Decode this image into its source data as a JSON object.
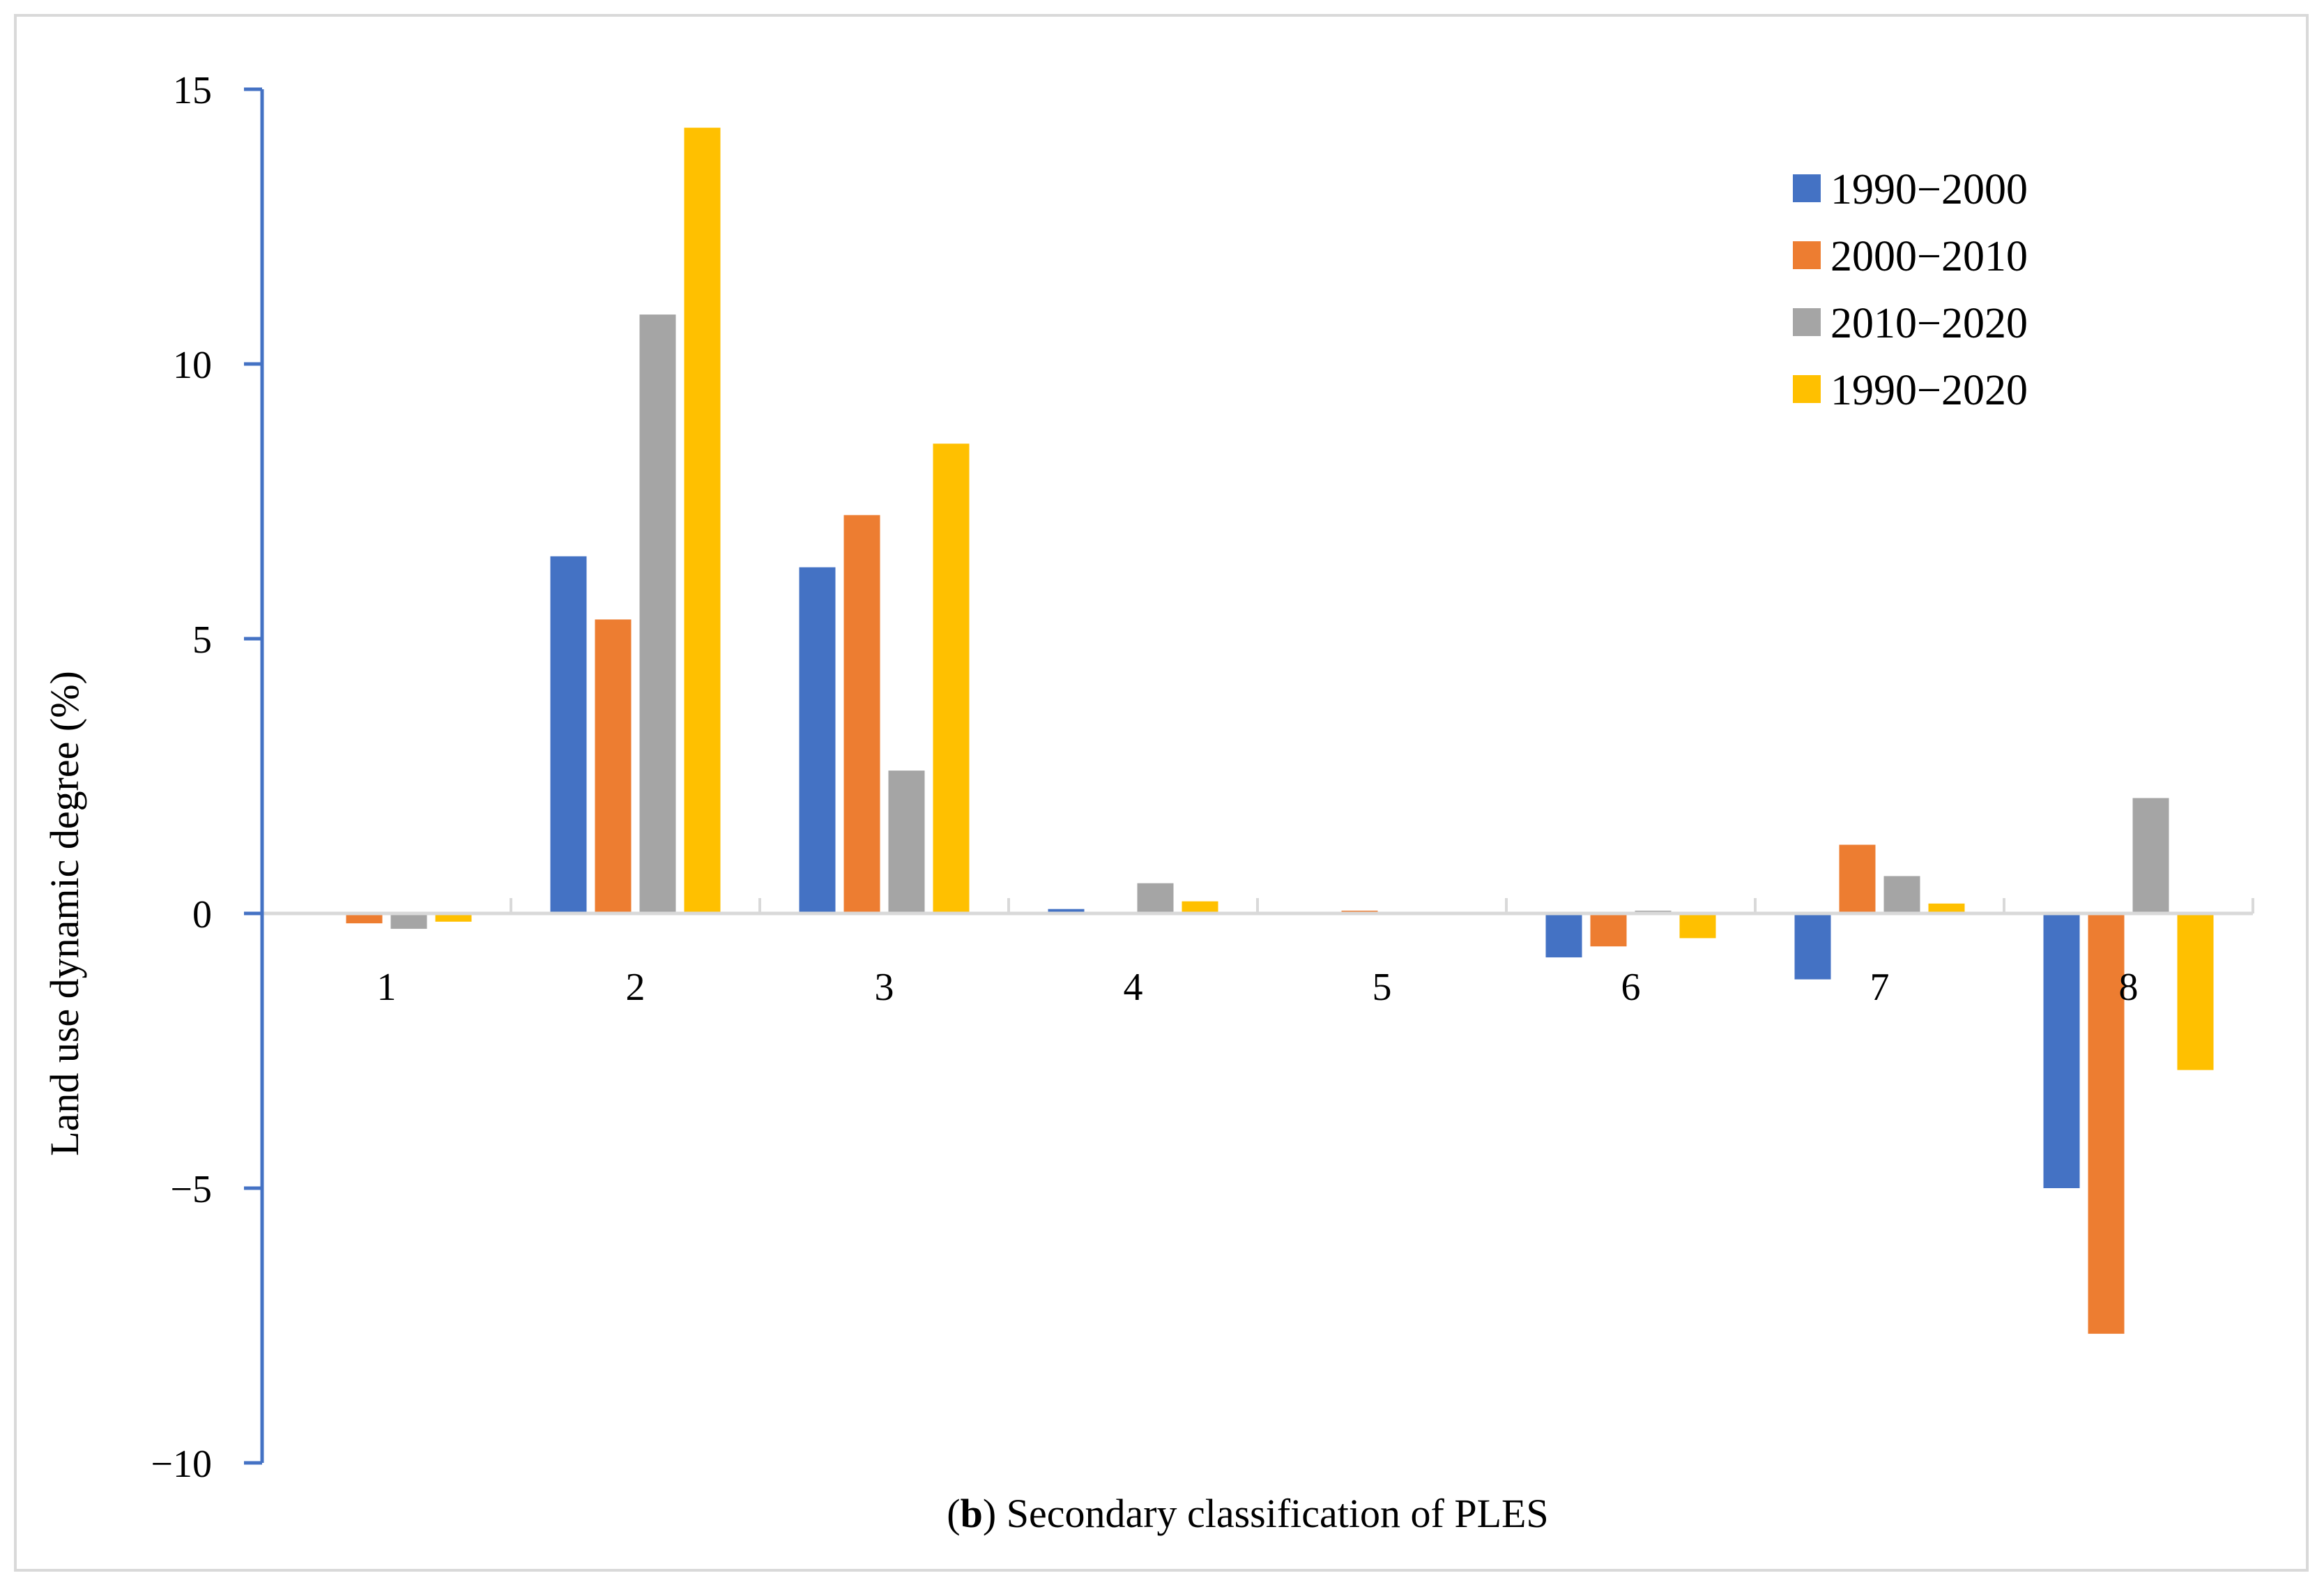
{
  "chart_data": {
    "type": "bar",
    "categories": [
      "1",
      "2",
      "3",
      "4",
      "5",
      "6",
      "7",
      "8"
    ],
    "series": [
      {
        "name": "1990−2000",
        "color": "#4472c4",
        "values": [
          0.0,
          6.5,
          6.3,
          0.08,
          0.0,
          -0.8,
          -1.2,
          -5.0
        ]
      },
      {
        "name": "2000−2010",
        "color": "#ed7d31",
        "values": [
          -0.18,
          5.35,
          7.25,
          0.03,
          0.05,
          -0.6,
          1.25,
          -7.65
        ]
      },
      {
        "name": "2010−2020",
        "color": "#a5a5a5",
        "values": [
          -0.28,
          10.9,
          2.6,
          0.55,
          0.0,
          0.05,
          0.68,
          2.1
        ]
      },
      {
        "name": "1990−2020",
        "color": "#ffc000",
        "values": [
          -0.15,
          14.3,
          8.55,
          0.22,
          0.0,
          -0.45,
          0.18,
          -2.85
        ]
      }
    ],
    "ylim": [
      -10,
      15
    ],
    "yticks": [
      "−10",
      "−5",
      "0",
      "5",
      "10",
      "15"
    ],
    "ylabel": "Land use dynamic degree (%)",
    "xlabel_prefix": "(",
    "xlabel_bold": "b",
    "xlabel_rest": ") Secondary classification of PLES",
    "legend_position": "top-right",
    "grid": false,
    "axis_color": "#4472c4",
    "zero_line_color": "#d9d9d9"
  }
}
